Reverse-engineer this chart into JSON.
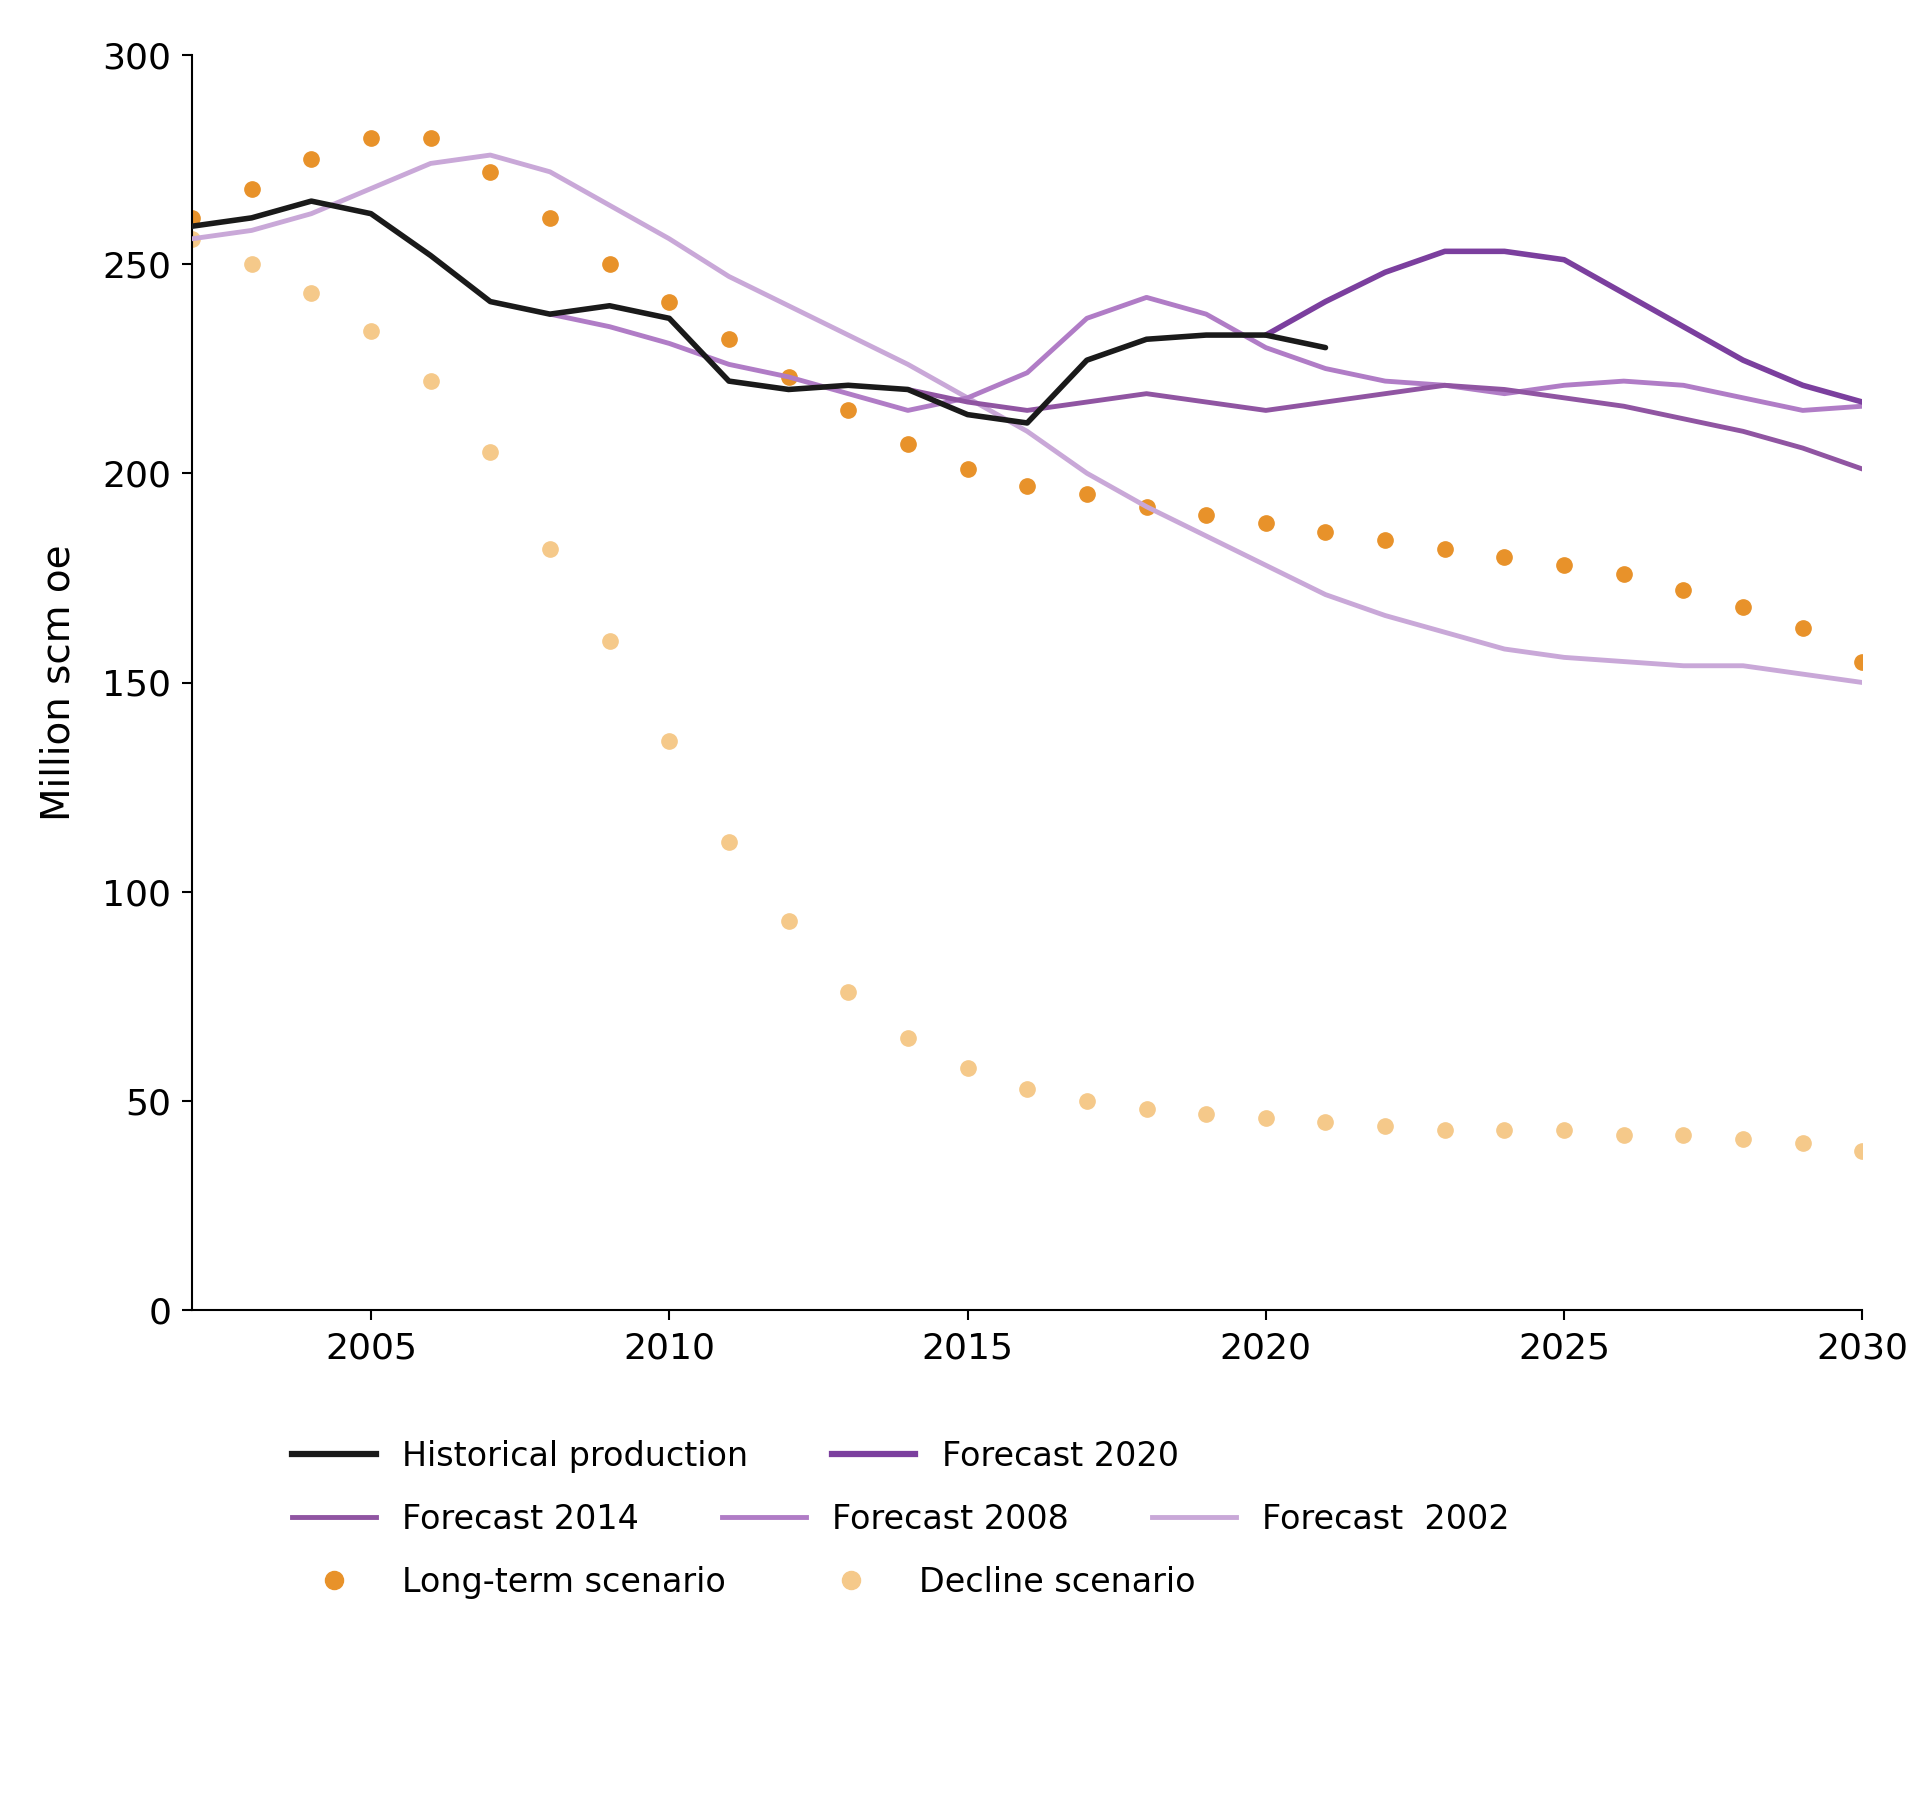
{
  "title": "",
  "ylabel": "Million scm oe",
  "xlim": [
    2002,
    2030
  ],
  "ylim": [
    0,
    300
  ],
  "yticks": [
    0,
    50,
    100,
    150,
    200,
    250,
    300
  ],
  "xticks": [
    2005,
    2010,
    2015,
    2020,
    2025,
    2030
  ],
  "bg_color": "#ffffff",
  "historical_production": {
    "x": [
      2002,
      2003,
      2004,
      2005,
      2006,
      2007,
      2008,
      2009,
      2010,
      2011,
      2012,
      2013,
      2014,
      2015,
      2016,
      2017,
      2018,
      2019,
      2020,
      2021
    ],
    "y": [
      259,
      261,
      265,
      262,
      252,
      241,
      238,
      240,
      237,
      222,
      220,
      221,
      220,
      214,
      212,
      227,
      232,
      233,
      233,
      230
    ],
    "color": "#1a1a1a",
    "linewidth": 4.0,
    "label": "Historical production"
  },
  "forecast_2020": {
    "x": [
      2020,
      2021,
      2022,
      2023,
      2024,
      2025,
      2026,
      2027,
      2028,
      2029,
      2030
    ],
    "y": [
      233,
      241,
      248,
      253,
      253,
      251,
      243,
      235,
      227,
      221,
      217
    ],
    "color": "#7b3f9e",
    "linewidth": 4.0,
    "label": "Forecast 2020"
  },
  "forecast_2014": {
    "x": [
      2014,
      2015,
      2016,
      2017,
      2018,
      2019,
      2020,
      2021,
      2022,
      2023,
      2024,
      2025,
      2026,
      2027,
      2028,
      2029,
      2030
    ],
    "y": [
      220,
      217,
      215,
      217,
      219,
      217,
      215,
      217,
      219,
      221,
      220,
      218,
      216,
      213,
      210,
      206,
      201
    ],
    "color": "#9055a2",
    "linewidth": 3.5,
    "label": "Forecast 2014"
  },
  "forecast_2008": {
    "x": [
      2008,
      2009,
      2010,
      2011,
      2012,
      2013,
      2014,
      2015,
      2016,
      2017,
      2018,
      2019,
      2020,
      2021,
      2022,
      2023,
      2024,
      2025,
      2026,
      2027,
      2028,
      2029,
      2030
    ],
    "y": [
      238,
      235,
      231,
      226,
      223,
      219,
      215,
      218,
      224,
      237,
      242,
      238,
      230,
      225,
      222,
      221,
      219,
      221,
      222,
      221,
      218,
      215,
      216
    ],
    "color": "#b07cc6",
    "linewidth": 3.5,
    "label": "Forecast 2008"
  },
  "forecast_2002": {
    "x": [
      2002,
      2003,
      2004,
      2005,
      2006,
      2007,
      2008,
      2009,
      2010,
      2011,
      2012,
      2013,
      2014,
      2015,
      2016,
      2017,
      2018,
      2019,
      2020,
      2021,
      2022,
      2023,
      2024,
      2025,
      2026,
      2027,
      2028,
      2029,
      2030
    ],
    "y": [
      256,
      258,
      262,
      268,
      274,
      276,
      272,
      264,
      256,
      247,
      240,
      233,
      226,
      218,
      210,
      200,
      192,
      185,
      178,
      171,
      166,
      162,
      158,
      156,
      155,
      154,
      154,
      152,
      150
    ],
    "color": "#c9a8d8",
    "linewidth": 3.5,
    "label": "Forecast  2002"
  },
  "long_term_scenario": {
    "x": [
      2002,
      2003,
      2004,
      2005,
      2006,
      2007,
      2008,
      2009,
      2010,
      2011,
      2012,
      2013,
      2014,
      2015,
      2016,
      2017,
      2018,
      2019,
      2020,
      2021,
      2022,
      2023,
      2024,
      2025,
      2026,
      2027,
      2028,
      2029,
      2030
    ],
    "y": [
      261,
      268,
      275,
      280,
      280,
      272,
      261,
      250,
      241,
      232,
      223,
      215,
      207,
      201,
      197,
      195,
      192,
      190,
      188,
      186,
      184,
      182,
      180,
      178,
      176,
      172,
      168,
      163,
      155
    ],
    "color": "#e8922a",
    "markersize": 11,
    "label": "Long-term scenario"
  },
  "decline_scenario": {
    "x": [
      2002,
      2003,
      2004,
      2005,
      2006,
      2007,
      2008,
      2009,
      2010,
      2011,
      2012,
      2013,
      2014,
      2015,
      2016,
      2017,
      2018,
      2019,
      2020,
      2021,
      2022,
      2023,
      2024,
      2025,
      2026,
      2027,
      2028,
      2029,
      2030
    ],
    "y": [
      256,
      250,
      243,
      234,
      222,
      205,
      182,
      160,
      136,
      112,
      93,
      76,
      65,
      58,
      53,
      50,
      48,
      47,
      46,
      45,
      44,
      43,
      43,
      43,
      42,
      42,
      41,
      40,
      38
    ],
    "color": "#f5c98a",
    "markersize": 11,
    "label": "Decline scenario"
  },
  "legend_row1": [
    {
      "label": "Historical production",
      "type": "line",
      "color": "#1a1a1a",
      "linewidth": 4.0
    },
    {
      "label": "Forecast 2020",
      "type": "line",
      "color": "#7b3f9e",
      "linewidth": 4.0
    }
  ],
  "legend_row2": [
    {
      "label": "Forecast 2014",
      "type": "line",
      "color": "#9055a2",
      "linewidth": 3.5
    },
    {
      "label": "Forecast 2008",
      "type": "line",
      "color": "#b07cc6",
      "linewidth": 3.5
    },
    {
      "label": "Forecast  2002",
      "type": "line",
      "color": "#c9a8d8",
      "linewidth": 3.5
    }
  ],
  "legend_row3": [
    {
      "label": "Long-term scenario",
      "type": "dot",
      "color": "#e8922a",
      "markersize": 11
    },
    {
      "label": "Decline scenario",
      "type": "dot",
      "color": "#f5c98a",
      "markersize": 11
    }
  ]
}
